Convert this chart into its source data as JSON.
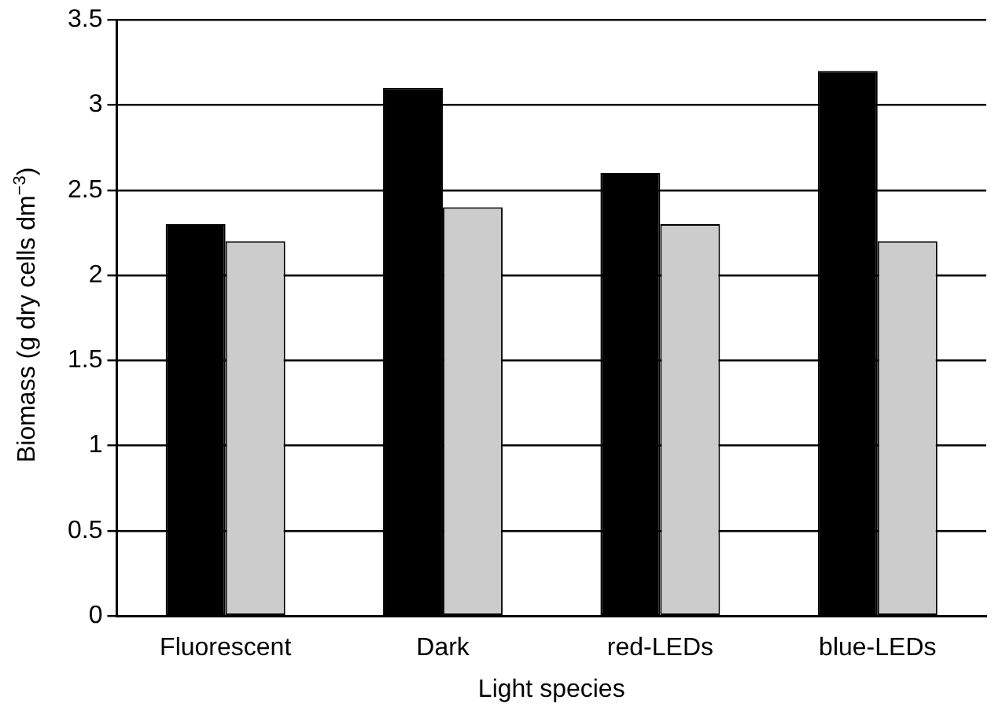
{
  "chart_data": {
    "type": "bar",
    "xlabel": "Light species",
    "ylabel": "Biomass (g dry cells dm$^{−3}$)",
    "categories": [
      "Fluorescent",
      "Dark",
      "red-LEDs",
      "blue-LEDs"
    ],
    "series": [
      {
        "color": "#000000",
        "values": [
          2.3,
          3.1,
          2.6,
          3.2
        ]
      },
      {
        "color": "#cccccc",
        "values": [
          2.2,
          2.4,
          2.3,
          2.2
        ]
      }
    ],
    "ylim": [
      0,
      3.5
    ],
    "yticks": [
      0,
      0.5,
      1,
      1.5,
      2,
      2.5,
      3,
      3.5
    ],
    "grid": "y",
    "legend": false
  }
}
